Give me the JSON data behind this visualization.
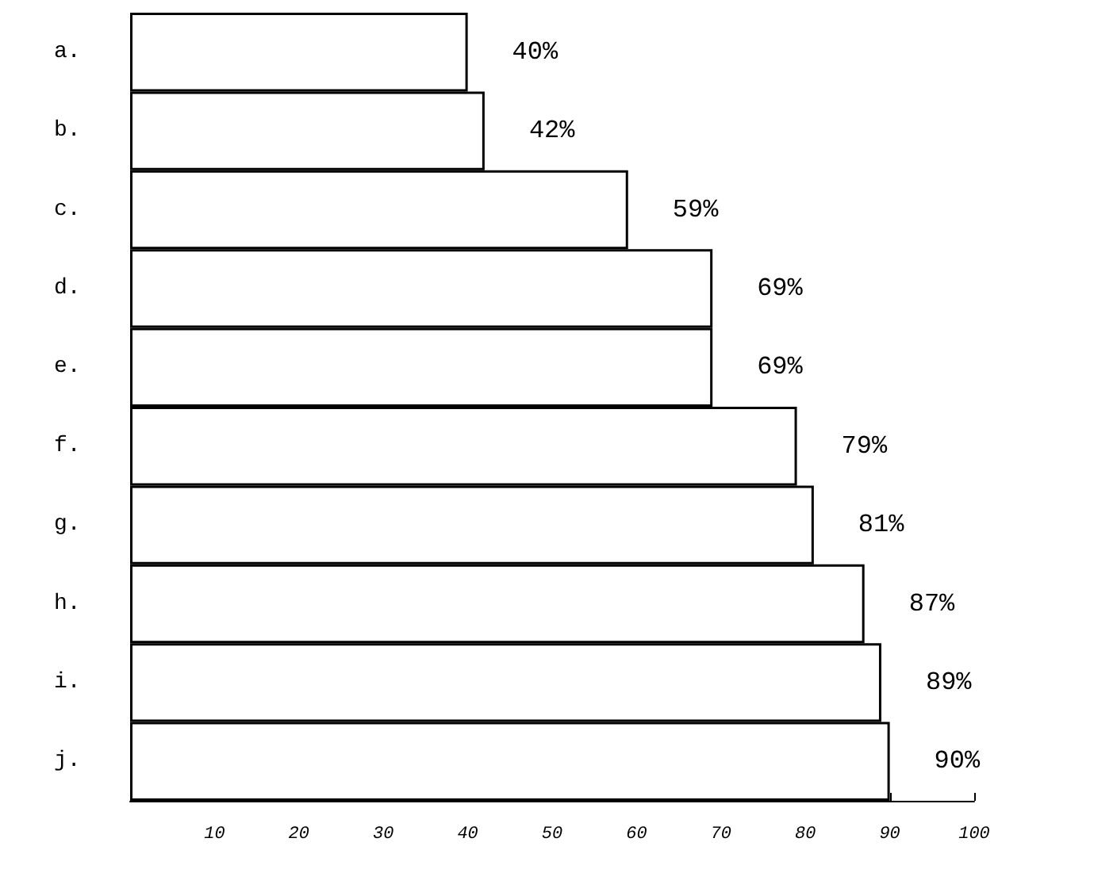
{
  "chart_data": {
    "type": "bar",
    "orientation": "horizontal",
    "categories": [
      "a.",
      "b.",
      "c.",
      "d.",
      "e.",
      "f.",
      "g.",
      "h.",
      "i.",
      "j."
    ],
    "values": [
      40,
      42,
      59,
      69,
      69,
      79,
      81,
      87,
      89,
      90
    ],
    "value_labels": [
      "40%",
      "42%",
      "59%",
      "69%",
      "69%",
      "79%",
      "81%",
      "87%",
      "89%",
      "90%"
    ],
    "color": "#ffffff",
    "xlim": [
      0,
      100
    ],
    "xticks": [
      10,
      20,
      30,
      40,
      50,
      60,
      70,
      80,
      90,
      100
    ],
    "grid": false
  }
}
